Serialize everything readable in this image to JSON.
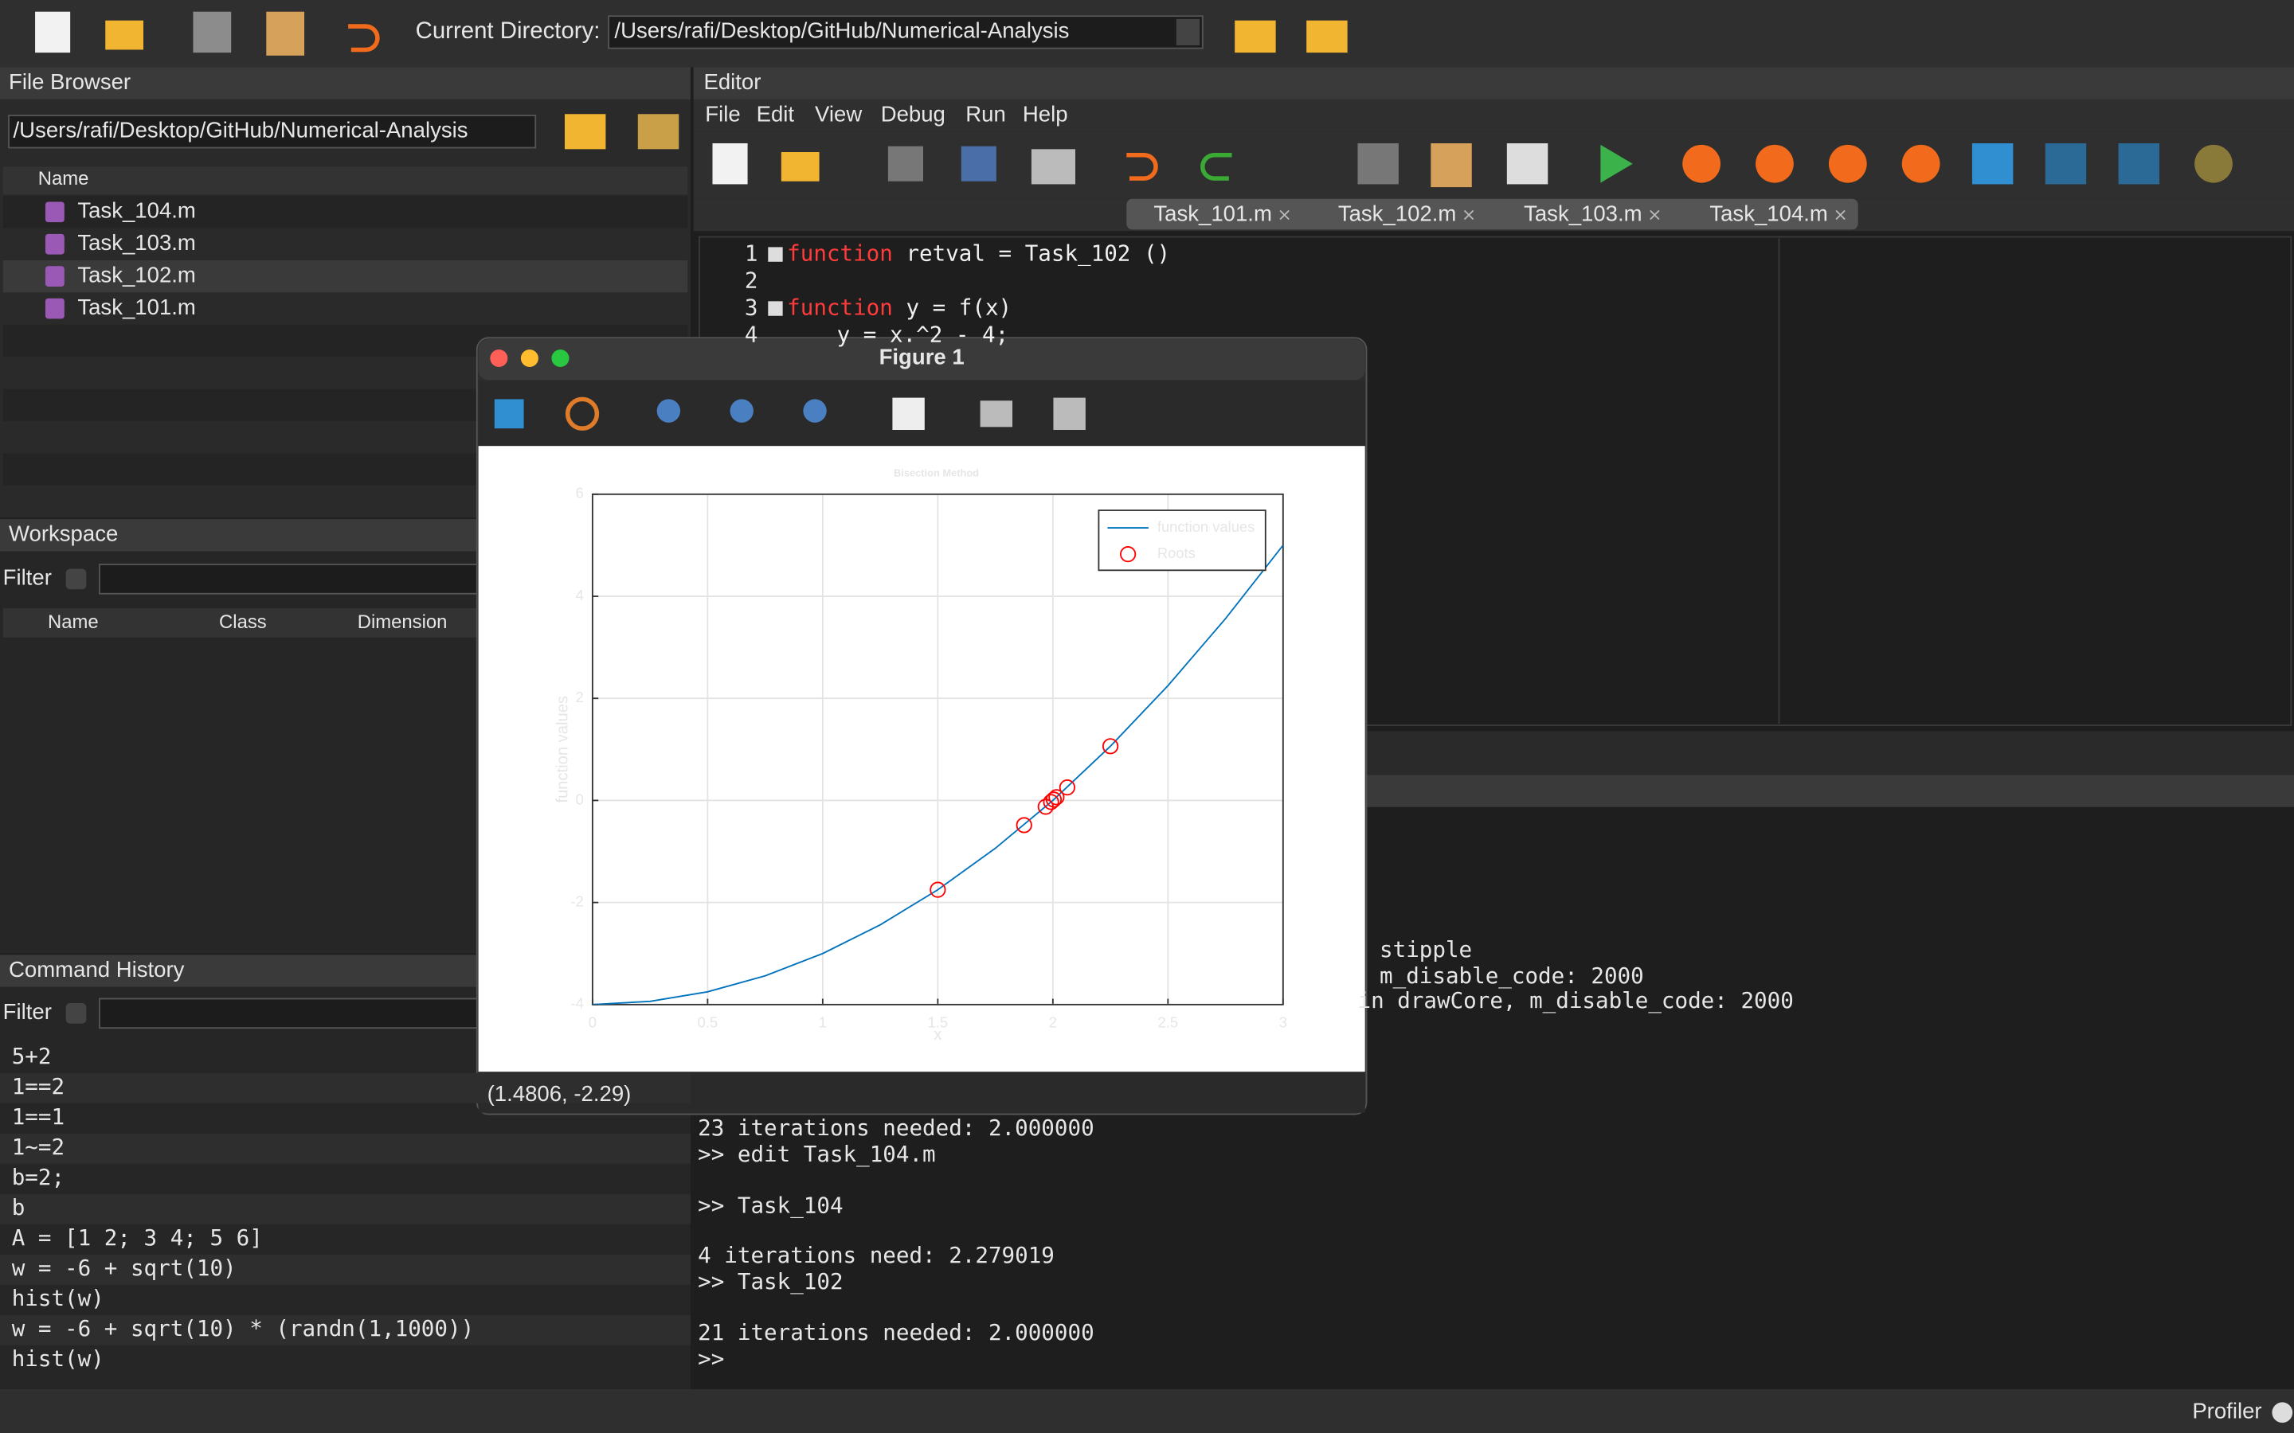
{
  "toolbar": {
    "current_directory_label": "Current Directory:",
    "current_directory": "/Users/rafi/Desktop/GitHub/Numerical-Analysis"
  },
  "file_browser": {
    "title": "File Browser",
    "path": "/Users/rafi/Desktop/GitHub/Numerical-Analysis",
    "column": "Name",
    "files": [
      "Task_104.m",
      "Task_103.m",
      "Task_102.m",
      "Task_101.m"
    ]
  },
  "workspace": {
    "title": "Workspace",
    "filter": "Filter",
    "columns": [
      "Name",
      "Class",
      "Dimension"
    ]
  },
  "command_history": {
    "title": "Command History",
    "filter": "Filter",
    "commands": [
      "5+2",
      "1==2",
      "1==1",
      "1~=2",
      "b=2;",
      "b",
      "A = [1 2; 3 4; 5 6]",
      "w = -6 + sqrt(10)",
      "hist(w)",
      "w = -6 + sqrt(10) * (randn(1,1000))",
      "hist(w)"
    ]
  },
  "editor": {
    "title": "Editor",
    "menu": [
      "File",
      "Edit",
      "View",
      "Debug",
      "Run",
      "Help"
    ],
    "tabs": [
      "Task_101.m",
      "Task_102.m",
      "Task_103.m",
      "Task_104.m"
    ],
    "lines": [
      {
        "number": 1,
        "keyword": "function",
        "code": "retval = Task_102 ()"
      },
      {
        "number": 2
      },
      {
        "number": 3,
        "keyword": "function",
        "code": "y = f(x)"
      },
      {
        "number": 4,
        "code": "y = x.^2 - 4;"
      }
    ]
  },
  "command_window": {
    "fragments": [
      "stipple",
      "m_disable_code: 2000",
      "in drawCore, m_disable_code: 2000"
    ],
    "lines": [
      "23 iterations needed: 2.000000",
      ">> edit Task_104.m",
      ">> Task_104",
      "4 iterations need: 2.279019",
      ">> Task_102",
      "21 iterations needed: 2.000000",
      ">>"
    ]
  },
  "figure": {
    "title": "Figure 1",
    "status": "(1.4806, -2.29)"
  },
  "status_bar": {
    "profiler": "Profiler"
  },
  "chart_data": {
    "type": "line",
    "title": "Bisection Method",
    "x_label": "x",
    "y_label": "function values",
    "xlim": [
      0,
      3
    ],
    "ylim": [
      -4,
      6
    ],
    "xticks": [
      0,
      0.5,
      1,
      1.5,
      2,
      2.5,
      3
    ],
    "yticks": [
      -4,
      -2,
      0,
      2,
      4,
      6
    ],
    "grid": true,
    "legend": "top-right",
    "series": [
      {
        "name": "function values",
        "color": "#0072bd",
        "x": [
          0,
          0.25,
          0.5,
          0.75,
          1,
          1.25,
          1.5,
          1.75,
          2,
          2.25,
          2.5,
          2.75,
          3
        ],
        "values": [
          -4,
          -3.9375,
          -3.75,
          -3.4375,
          -3,
          -2.4375,
          -1.75,
          -0.9375,
          0,
          1.0625,
          2.25,
          3.5625,
          5
        ]
      },
      {
        "name": "Roots",
        "color": "#ff0000",
        "marker": "circle",
        "x": [
          1.5,
          2.25,
          1.875,
          2.0625,
          1.96875,
          2.015625,
          1.9921875,
          2.00390625
        ],
        "values": [
          -1.75,
          1.0625,
          -0.484,
          0.254,
          -0.124,
          0.063,
          -0.031,
          0.016
        ]
      }
    ]
  }
}
